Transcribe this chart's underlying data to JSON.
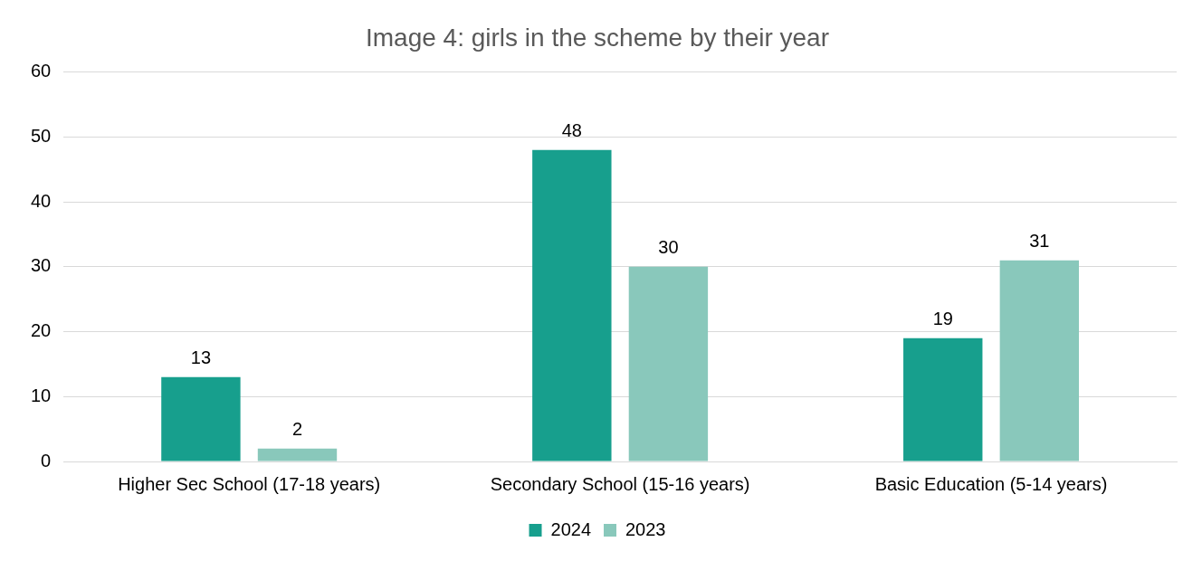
{
  "chart_data": {
    "type": "bar",
    "title": "Image 4: girls in the scheme by their year",
    "categories": [
      "Higher Sec School (17-18 years)",
      "Secondary School (15-16 years)",
      "Basic Education (5-14 years)"
    ],
    "series": [
      {
        "name": "2024",
        "color": "#179f8d",
        "values": [
          13,
          48,
          19
        ]
      },
      {
        "name": "2023",
        "color": "#89c8bb",
        "values": [
          2,
          30,
          31
        ]
      }
    ],
    "ylim": [
      0,
      60
    ],
    "yticks": [
      0,
      10,
      20,
      30,
      40,
      50,
      60
    ],
    "grid": "y",
    "legend": "bottom",
    "data_labels": true
  }
}
